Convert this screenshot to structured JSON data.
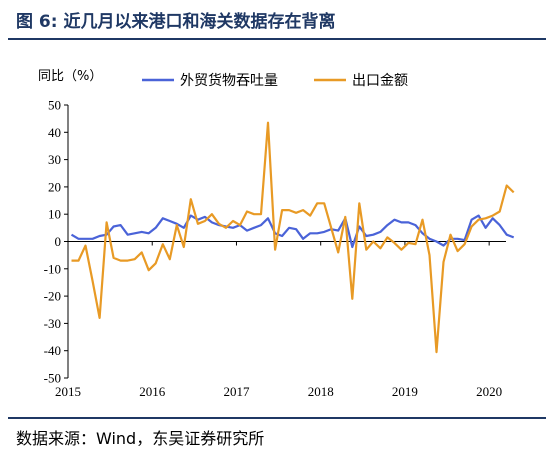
{
  "header": {
    "title": "图 6:  近几月以来港口和海关数据存在背离"
  },
  "footer": {
    "source": "数据来源：Wind，东吴证券研究所"
  },
  "chart_data": {
    "type": "line",
    "unit_label": "同比（%）",
    "ylim": [
      -50,
      50
    ],
    "y_ticks": [
      50,
      40,
      30,
      20,
      10,
      0,
      -10,
      -20,
      -30,
      -40,
      -50
    ],
    "x_ticks": [
      "2015",
      "2016",
      "2017",
      "2018",
      "2019",
      "2020"
    ],
    "grid": false,
    "legend_position": "top",
    "series": [
      {
        "name": "外贸货物吞吐量",
        "color": "#4a63d8",
        "points": [
          [
            "2015-01",
            2.5
          ],
          [
            "2015-02",
            1.0
          ],
          [
            "2015-03",
            1.0
          ],
          [
            "2015-04",
            1.0
          ],
          [
            "2015-05",
            2.0
          ],
          [
            "2015-06",
            2.5
          ],
          [
            "2015-07",
            5.5
          ],
          [
            "2015-08",
            6.0
          ],
          [
            "2015-09",
            2.5
          ],
          [
            "2015-10",
            3.0
          ],
          [
            "2015-11",
            3.5
          ],
          [
            "2015-12",
            3.0
          ],
          [
            "2016-01",
            5.0
          ],
          [
            "2016-02",
            8.5
          ],
          [
            "2016-03",
            7.5
          ],
          [
            "2016-04",
            6.5
          ],
          [
            "2016-05",
            5.0
          ],
          [
            "2016-06",
            9.5
          ],
          [
            "2016-07",
            8.0
          ],
          [
            "2016-08",
            9.0
          ],
          [
            "2016-09",
            7.0
          ],
          [
            "2016-10",
            6.0
          ],
          [
            "2016-11",
            5.5
          ],
          [
            "2016-12",
            5.0
          ],
          [
            "2017-01",
            6.0
          ],
          [
            "2017-02",
            4.0
          ],
          [
            "2017-03",
            5.0
          ],
          [
            "2017-04",
            6.0
          ],
          [
            "2017-05",
            8.5
          ],
          [
            "2017-06",
            3.0
          ],
          [
            "2017-07",
            2.0
          ],
          [
            "2017-08",
            5.0
          ],
          [
            "2017-09",
            4.5
          ],
          [
            "2017-10",
            1.0
          ],
          [
            "2017-11",
            3.0
          ],
          [
            "2017-12",
            3.0
          ],
          [
            "2018-01",
            3.5
          ],
          [
            "2018-02",
            4.5
          ],
          [
            "2018-03",
            4.0
          ],
          [
            "2018-04",
            8.5
          ],
          [
            "2018-05",
            -2.0
          ],
          [
            "2018-06",
            5.5
          ],
          [
            "2018-07",
            2.0
          ],
          [
            "2018-08",
            2.5
          ],
          [
            "2018-09",
            3.5
          ],
          [
            "2018-10",
            6.0
          ],
          [
            "2018-11",
            8.0
          ],
          [
            "2018-12",
            7.0
          ],
          [
            "2019-01",
            7.0
          ],
          [
            "2019-02",
            6.0
          ],
          [
            "2019-03",
            3.0
          ],
          [
            "2019-04",
            1.0
          ],
          [
            "2019-05",
            0.0
          ],
          [
            "2019-06",
            -1.5
          ],
          [
            "2019-07",
            1.0
          ],
          [
            "2019-08",
            1.0
          ],
          [
            "2019-09",
            0.5
          ],
          [
            "2019-10",
            8.0
          ],
          [
            "2019-11",
            9.5
          ],
          [
            "2019-12",
            5.0
          ],
          [
            "2020-01",
            8.5
          ],
          [
            "2020-02",
            6.0
          ],
          [
            "2020-03",
            2.5
          ],
          [
            "2020-04",
            1.5
          ]
        ]
      },
      {
        "name": "出口金额",
        "color": "#e89a25",
        "points": [
          [
            "2015-01",
            -7.0
          ],
          [
            "2015-02",
            -7.0
          ],
          [
            "2015-03",
            -1.5
          ],
          [
            "2015-04",
            -14.5
          ],
          [
            "2015-05",
            -28.0
          ],
          [
            "2015-06",
            7.0
          ],
          [
            "2015-07",
            -6.0
          ],
          [
            "2015-08",
            -7.0
          ],
          [
            "2015-09",
            -7.0
          ],
          [
            "2015-10",
            -6.5
          ],
          [
            "2015-11",
            -4.0
          ],
          [
            "2015-12",
            -10.5
          ],
          [
            "2016-01",
            -8.0
          ],
          [
            "2016-02",
            -1.0
          ],
          [
            "2016-03",
            -6.5
          ],
          [
            "2016-04",
            6.0
          ],
          [
            "2016-05",
            -2.0
          ],
          [
            "2016-06",
            15.5
          ],
          [
            "2016-07",
            6.5
          ],
          [
            "2016-08",
            7.5
          ],
          [
            "2016-09",
            10.0
          ],
          [
            "2016-10",
            6.5
          ],
          [
            "2016-11",
            5.0
          ],
          [
            "2016-12",
            7.5
          ],
          [
            "2017-01",
            6.0
          ],
          [
            "2017-02",
            11.0
          ],
          [
            "2017-03",
            10.0
          ],
          [
            "2017-04",
            10.0
          ],
          [
            "2017-05",
            43.5
          ],
          [
            "2017-06",
            -3.0
          ],
          [
            "2017-07",
            11.5
          ],
          [
            "2017-08",
            11.5
          ],
          [
            "2017-09",
            10.5
          ],
          [
            "2017-10",
            11.5
          ],
          [
            "2017-11",
            9.5
          ],
          [
            "2017-12",
            14.0
          ],
          [
            "2018-01",
            14.0
          ],
          [
            "2018-02",
            5.0
          ],
          [
            "2018-03",
            -4.0
          ],
          [
            "2018-04",
            9.0
          ],
          [
            "2018-05",
            -21.0
          ],
          [
            "2018-06",
            14.0
          ],
          [
            "2018-07",
            -3.0
          ],
          [
            "2018-08",
            0.0
          ],
          [
            "2018-09",
            -2.5
          ],
          [
            "2018-10",
            1.5
          ],
          [
            "2018-11",
            -0.5
          ],
          [
            "2018-12",
            -3.0
          ],
          [
            "2019-01",
            -0.5
          ],
          [
            "2019-02",
            -1.0
          ],
          [
            "2019-03",
            8.0
          ],
          [
            "2019-04",
            -5.0
          ],
          [
            "2019-05",
            -40.5
          ],
          [
            "2019-06",
            -7.5
          ],
          [
            "2019-07",
            2.5
          ],
          [
            "2019-08",
            -3.5
          ],
          [
            "2019-09",
            -1.0
          ],
          [
            "2019-10",
            5.5
          ],
          [
            "2019-11",
            8.0
          ],
          [
            "2019-12",
            8.5
          ],
          [
            "2020-01",
            9.5
          ],
          [
            "2020-02",
            11.0
          ],
          [
            "2020-03",
            20.5
          ],
          [
            "2020-04",
            18.0
          ]
        ]
      }
    ]
  }
}
